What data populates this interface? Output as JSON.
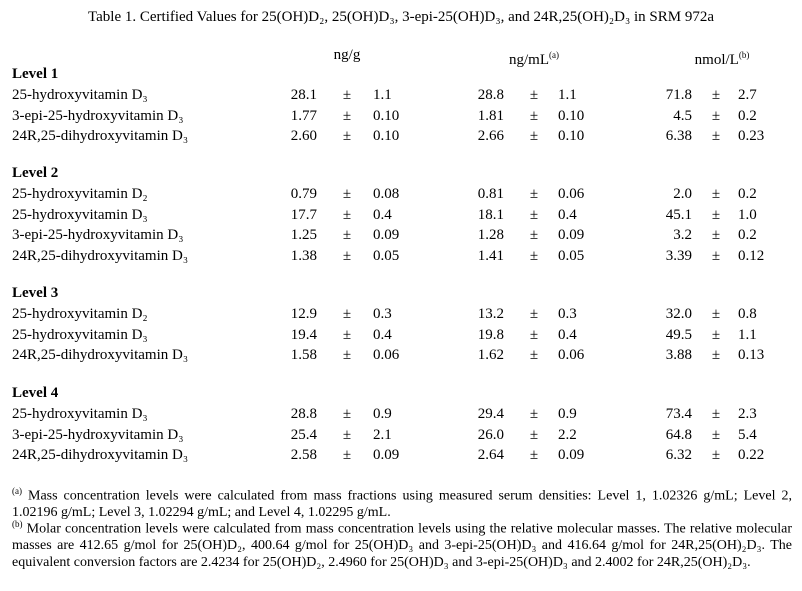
{
  "title": "Table 1.  Certified Values for 25(OH)D₂, 25(OH)D₃, 3-epi-25(OH)D₃, and 24R,25(OH)₂D₃ in SRM 972a",
  "headers": [
    {
      "label": "ng/g",
      "note": ""
    },
    {
      "label": "ng/mL",
      "note": "(a)"
    },
    {
      "label": "nmol/L",
      "note": "(b)"
    }
  ],
  "pm": "±",
  "levels": [
    {
      "name": "Level 1",
      "rows": [
        {
          "label": "25-hydroxyvitamin D₃",
          "values": [
            [
              "28.1",
              "1.1"
            ],
            [
              "28.8",
              "1.1"
            ],
            [
              "71.8",
              "2.7"
            ]
          ]
        },
        {
          "label": "3-epi-25-hydroxyvitamin D₃",
          "values": [
            [
              "1.77",
              "0.10"
            ],
            [
              "1.81",
              "0.10"
            ],
            [
              "4.5",
              "0.2"
            ]
          ]
        },
        {
          "label": "24R,25-dihydroxyvitamin D₃",
          "values": [
            [
              "2.60",
              "0.10"
            ],
            [
              "2.66",
              "0.10"
            ],
            [
              "6.38",
              "0.23"
            ]
          ]
        }
      ]
    },
    {
      "name": "Level 2",
      "rows": [
        {
          "label": "25-hydroxyvitamin D₂",
          "values": [
            [
              "0.79",
              "0.08"
            ],
            [
              "0.81",
              "0.06"
            ],
            [
              "2.0",
              "0.2"
            ]
          ]
        },
        {
          "label": "25-hydroxyvitamin D₃",
          "values": [
            [
              "17.7",
              "0.4"
            ],
            [
              "18.1",
              "0.4"
            ],
            [
              "45.1",
              "1.0"
            ]
          ]
        },
        {
          "label": "3-epi-25-hydroxyvitamin D₃",
          "values": [
            [
              "1.25",
              "0.09"
            ],
            [
              "1.28",
              "0.09"
            ],
            [
              "3.2",
              "0.2"
            ]
          ]
        },
        {
          "label": "24R,25-dihydroxyvitamin D₃",
          "values": [
            [
              "1.38",
              "0.05"
            ],
            [
              "1.41",
              "0.05"
            ],
            [
              "3.39",
              "0.12"
            ]
          ]
        }
      ]
    },
    {
      "name": "Level 3",
      "rows": [
        {
          "label": "25-hydroxyvitamin D₂",
          "values": [
            [
              "12.9",
              "0.3"
            ],
            [
              "13.2",
              "0.3"
            ],
            [
              "32.0",
              "0.8"
            ]
          ]
        },
        {
          "label": "25-hydroxyvitamin D₃",
          "values": [
            [
              "19.4",
              "0.4"
            ],
            [
              "19.8",
              "0.4"
            ],
            [
              "49.5",
              "1.1"
            ]
          ]
        },
        {
          "label": "24R,25-dihydroxyvitamin D₃",
          "values": [
            [
              "1.58",
              "0.06"
            ],
            [
              "1.62",
              "0.06"
            ],
            [
              "3.88",
              "0.13"
            ]
          ]
        }
      ]
    },
    {
      "name": "Level 4",
      "rows": [
        {
          "label": "25-hydroxyvitamin D₃",
          "values": [
            [
              "28.8",
              "0.9"
            ],
            [
              "29.4",
              "0.9"
            ],
            [
              "73.4",
              "2.3"
            ]
          ]
        },
        {
          "label": "3-epi-25-hydroxyvitamin D₃",
          "values": [
            [
              "25.4",
              "2.1"
            ],
            [
              "26.0",
              "2.2"
            ],
            [
              "64.8",
              "5.4"
            ]
          ]
        },
        {
          "label": "24R,25-dihydroxyvitamin D₃",
          "values": [
            [
              "2.58",
              "0.09"
            ],
            [
              "2.64",
              "0.09"
            ],
            [
              "6.32",
              "0.22"
            ]
          ]
        }
      ]
    }
  ],
  "footnotes": [
    {
      "mark": "(a)",
      "text": " Mass concentration levels were calculated from mass fractions using measured serum densities:  Level 1, 1.02326 g/mL; Level 2, 1.02196 g/mL; Level 3, 1.02294 g/mL; and Level 4, 1.02295 g/mL."
    },
    {
      "mark": "(b)",
      "text": " Molar concentration levels were calculated from mass concentration levels using the relative molecular masses.  The relative molecular masses are 412.65 g/mol for 25(OH)D₂, 400.64 g/mol for 25(OH)D₃ and 3-epi-25(OH)D₃ and 416.64 g/mol for 24R,25(OH)₂D₃.  The equivalent conversion factors are 2.4234 for 25(OH)D₂, 2.4960 for 25(OH)D₃ and 3-epi-25(OH)D₃ and 2.4002 for 24R,25(OH)₂D₃."
    }
  ]
}
